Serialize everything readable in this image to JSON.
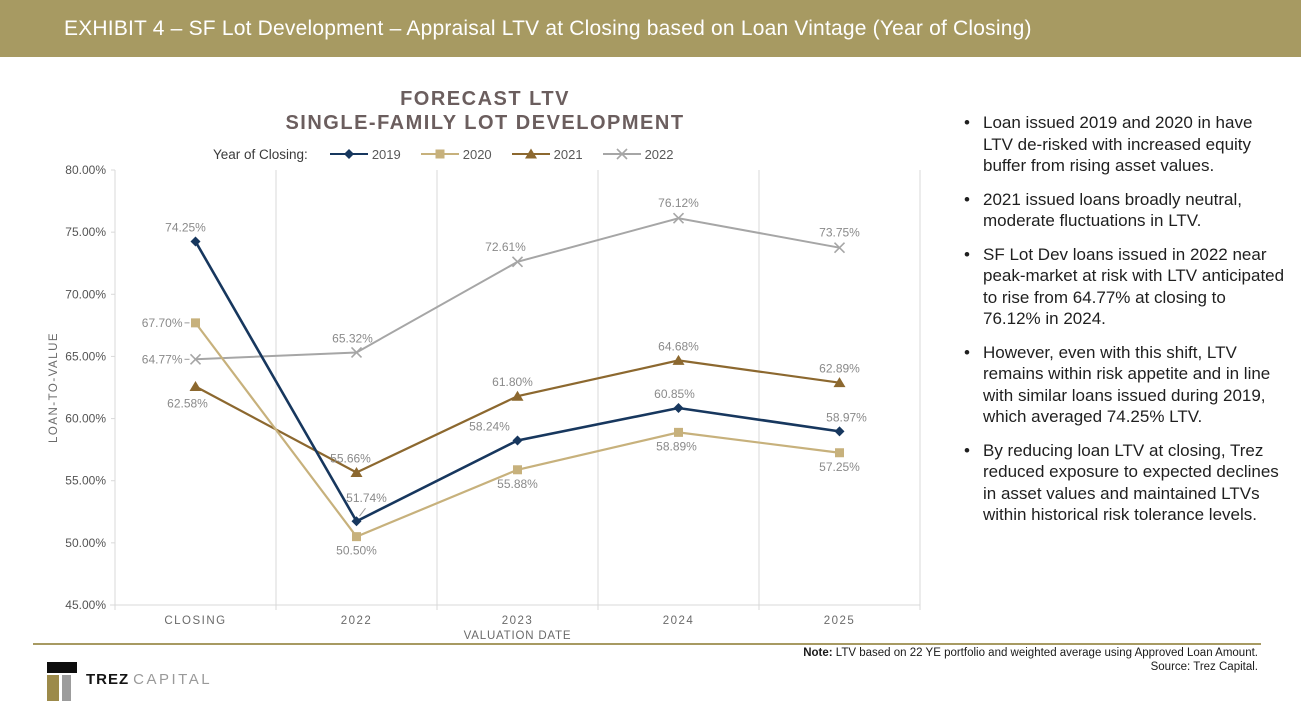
{
  "header": {
    "title": "EXHIBIT 4 – SF Lot Development – Appraisal LTV at Closing based on Loan Vintage (Year of Closing)",
    "bg_color": "#A79A62",
    "text_color": "#FFFFFF"
  },
  "chart": {
    "title_line1": "FORECAST LTV",
    "title_line2": "SINGLE-FAMILY LOT DEVELOPMENT",
    "legend_label": "Year of Closing:",
    "ylabel": "LOAN-TO-VALUE",
    "xlabel": "VALUATION DATE"
  },
  "chart_data": {
    "type": "line",
    "categories": [
      "CLOSING",
      "2022",
      "2023",
      "2024",
      "2025"
    ],
    "series": [
      {
        "name": "2019",
        "marker": "diamond",
        "color": "#17375E",
        "values": [
          74.25,
          51.74,
          58.24,
          60.85,
          58.97
        ]
      },
      {
        "name": "2020",
        "marker": "square",
        "color": "#C7B17C",
        "values": [
          67.7,
          50.5,
          55.88,
          58.89,
          57.25
        ]
      },
      {
        "name": "2021",
        "marker": "triangle",
        "color": "#8C682F",
        "values": [
          62.58,
          55.66,
          61.8,
          64.68,
          62.89
        ]
      },
      {
        "name": "2022",
        "marker": "x",
        "color": "#A6A6A6",
        "values": [
          64.77,
          65.32,
          72.61,
          76.12,
          73.75
        ]
      }
    ],
    "ylim": [
      45,
      80
    ],
    "ytick_step": 5,
    "ytick_format": "percent_2dp",
    "grid": "vertical-only",
    "legend_position": "top",
    "gridline_color": "#D9D9D9",
    "data_label_color": "#8A8A8A",
    "axis_label_color": "#595959"
  },
  "bullets": [
    "Loan issued 2019 and 2020 in have LTV de-risked with increased equity buffer from rising asset values.",
    "2021 issued loans broadly neutral, moderate fluctuations in LTV.",
    "SF Lot Dev loans issued in 2022 near peak-market at risk with LTV anticipated to rise from 64.77% at closing to 76.12% in 2024.",
    "However, even with this shift, LTV remains within risk appetite and in line with similar loans issued during 2019, which averaged 74.25% LTV.",
    "By reducing loan LTV at closing, Trez reduced exposure to expected declines in asset values and maintained LTVs within historical risk tolerance levels."
  ],
  "footnote": {
    "label": "Note:",
    "text": " LTV based on 22 YE portfolio and weighted average using Approved Loan Amount.",
    "source": "Source: Trez Capital."
  },
  "logo": {
    "name": "TREZ",
    "suffix": "CAPITAL",
    "gold_color": "#9C8A4A"
  },
  "accent_color": "#A79A62"
}
